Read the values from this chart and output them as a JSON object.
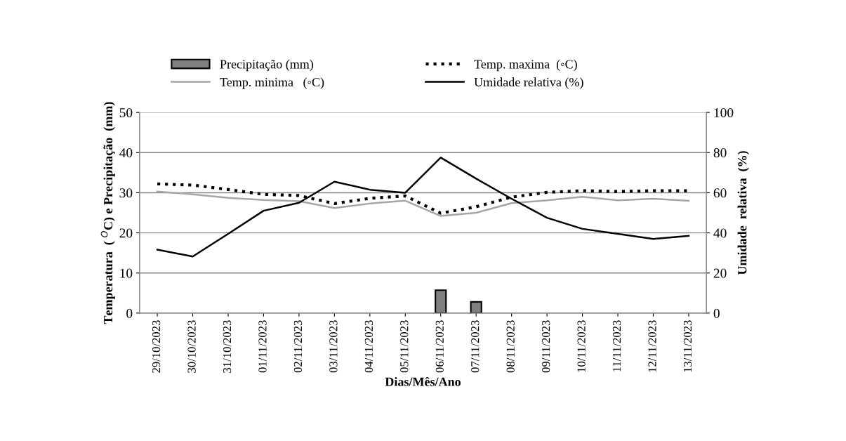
{
  "chart_data": {
    "type": "line",
    "xlabel": "Dias/Mês/Ano",
    "ylabel": "Temperatura  ( $^{O}$C) e Precipitação  (mm)",
    "y2label": "Umidade  relativa  (%)",
    "categories": [
      "29/10/2023",
      "30/10/2023",
      "31/10/2023",
      "01/11/2023",
      "02/11/2023",
      "03/11/2023",
      "04/11/2023",
      "05/11/2023",
      "06/11/2023",
      "07/11/2023",
      "08/11/2023",
      "09/11/2023",
      "10/11/2023",
      "11/11/2023",
      "12/11/2023",
      "13/11/2023"
    ],
    "series": [
      {
        "name": "Precipitação (mm)",
        "type": "bar",
        "color": "#7f7f7f",
        "values": [
          null,
          null,
          null,
          null,
          null,
          null,
          null,
          null,
          5.7,
          2.8,
          null,
          null,
          null,
          null,
          null,
          null
        ]
      },
      {
        "name": "Temp. maxima  (◦C)",
        "line_style": "dotted",
        "color": "#000000",
        "values": [
          32.2,
          31.9,
          30.8,
          29.6,
          29.3,
          27.3,
          28.6,
          29.2,
          24.9,
          26.5,
          28.9,
          30.1,
          30.5,
          30.3,
          30.5,
          30.5
        ]
      },
      {
        "name": "Temp. minima   (◦C)",
        "line_style": "solid",
        "color": "#a6a6a6",
        "values": [
          30.3,
          29.6,
          28.7,
          28.2,
          27.9,
          26.2,
          27.3,
          28.0,
          24.2,
          25.0,
          27.4,
          28.1,
          29.0,
          28.1,
          28.5,
          28.0
        ]
      },
      {
        "name": "Umidade relativa (%)",
        "line_style": "solid",
        "axis": "y2",
        "color": "#000000",
        "values": [
          31.6,
          28.2,
          39.5,
          51,
          55,
          65.5,
          61.5,
          60,
          77.5,
          67,
          57,
          47.5,
          42,
          39.5,
          37,
          38.5
        ]
      }
    ],
    "ylim": [
      0,
      50
    ],
    "yticks": [
      0,
      10,
      20,
      30,
      40,
      50
    ],
    "y2lim": [
      0,
      100
    ],
    "y2ticks": [
      0,
      20,
      40,
      60,
      80,
      100
    ],
    "grid": "y",
    "legend": "top"
  }
}
